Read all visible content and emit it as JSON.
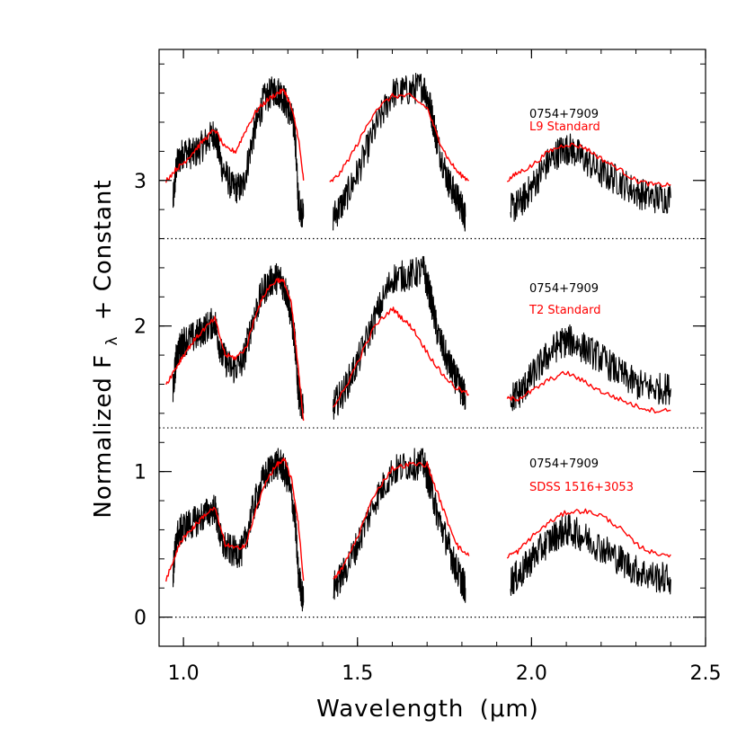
{
  "chart_data": {
    "type": "line",
    "title": "",
    "xlabel": "Wavelength",
    "xlabel_unit": "(μm)",
    "ylabel": "Normalized F",
    "ylabel_sub": "λ",
    "ylabel_suffix": "+ Constant",
    "xlim": [
      0.93,
      2.5
    ],
    "ylim": [
      -0.2,
      3.9
    ],
    "x_ticks": [
      1.0,
      1.5,
      2.0,
      2.5
    ],
    "x_tick_labels": [
      "1.0",
      "1.5",
      "2.0",
      "2.5"
    ],
    "y_ticks": [
      0,
      1,
      2,
      3
    ],
    "y_tick_labels": [
      "0",
      "1",
      "2",
      "3"
    ],
    "grid": false,
    "zero_lines": [
      0.0,
      1.3,
      2.6
    ],
    "colors": {
      "object": "#000000",
      "comparison": "#ff0000",
      "zero_line": "#000000"
    },
    "panels": [
      {
        "offset": 2.6,
        "object_label": "0754+7909",
        "comparison_label": "L9 Standard",
        "object_segments": [
          {
            "x": [
              0.97,
              0.98,
              1.0,
              1.03,
              1.06,
              1.09,
              1.11,
              1.14,
              1.17,
              1.2,
              1.23,
              1.26,
              1.28,
              1.3,
              1.32,
              1.33,
              1.345
            ],
            "y": [
              2.85,
              3.1,
              3.2,
              3.18,
              3.25,
              3.33,
              3.1,
              2.95,
              2.95,
              3.3,
              3.55,
              3.62,
              3.6,
              3.5,
              3.35,
              2.85,
              2.75
            ]
          },
          {
            "x": [
              1.43,
              1.46,
              1.5,
              1.55,
              1.6,
              1.65,
              1.69,
              1.71,
              1.73,
              1.76,
              1.78,
              1.8,
              1.81
            ],
            "y": [
              2.75,
              2.85,
              3.05,
              3.35,
              3.6,
              3.62,
              3.65,
              3.5,
              3.25,
              3.0,
              2.9,
              2.82,
              2.75
            ]
          },
          {
            "x": [
              1.94,
              1.97,
              2.0,
              2.04,
              2.08,
              2.11,
              2.15,
              2.2,
              2.25,
              2.3,
              2.35,
              2.4
            ],
            "y": [
              2.8,
              2.85,
              2.95,
              3.1,
              3.2,
              3.22,
              3.15,
              3.05,
              3.0,
              2.92,
              2.88,
              2.88
            ]
          }
        ],
        "comparison_segments": [
          {
            "x": [
              0.95,
              0.98,
              1.0,
              1.03,
              1.06,
              1.09,
              1.12,
              1.15,
              1.18,
              1.21,
              1.24,
              1.27,
              1.29,
              1.31,
              1.33,
              1.345
            ],
            "y": [
              3.0,
              3.08,
              3.12,
              3.2,
              3.28,
              3.35,
              3.22,
              3.2,
              3.35,
              3.48,
              3.55,
              3.6,
              3.62,
              3.5,
              3.3,
              3.0
            ]
          },
          {
            "x": [
              1.42,
              1.45,
              1.5,
              1.55,
              1.6,
              1.65,
              1.7,
              1.73,
              1.76,
              1.79,
              1.82
            ],
            "y": [
              2.98,
              3.05,
              3.25,
              3.48,
              3.58,
              3.58,
              3.5,
              3.3,
              3.15,
              3.05,
              3.0
            ]
          },
          {
            "x": [
              1.93,
              1.96,
              2.0,
              2.05,
              2.1,
              2.15,
              2.2,
              2.25,
              2.3,
              2.35,
              2.4
            ],
            "y": [
              3.0,
              3.05,
              3.1,
              3.2,
              3.25,
              3.23,
              3.15,
              3.08,
              3.0,
              2.97,
              2.97
            ]
          }
        ]
      },
      {
        "offset": 1.3,
        "object_label": "0754+7909",
        "comparison_label": "T2 Standard",
        "object_segments": [
          {
            "x": [
              0.97,
              0.98,
              1.0,
              1.03,
              1.06,
              1.09,
              1.11,
              1.14,
              1.17,
              1.2,
              1.23,
              1.26,
              1.28,
              1.3,
              1.32,
              1.33,
              1.345
            ],
            "y": [
              1.55,
              1.8,
              1.9,
              1.92,
              1.98,
              2.03,
              1.8,
              1.7,
              1.75,
              2.05,
              2.25,
              2.33,
              2.32,
              2.2,
              1.9,
              1.55,
              1.4
            ]
          },
          {
            "x": [
              1.43,
              1.46,
              1.5,
              1.55,
              1.6,
              1.65,
              1.69,
              1.71,
              1.73,
              1.76,
              1.78,
              1.8,
              1.81
            ],
            "y": [
              1.45,
              1.55,
              1.75,
              2.05,
              2.33,
              2.35,
              2.38,
              2.2,
              1.95,
              1.75,
              1.65,
              1.55,
              1.52
            ]
          },
          {
            "x": [
              1.94,
              1.97,
              2.0,
              2.04,
              2.08,
              2.11,
              2.15,
              2.2,
              2.25,
              2.3,
              2.35,
              2.4
            ],
            "y": [
              1.5,
              1.55,
              1.65,
              1.78,
              1.88,
              1.9,
              1.85,
              1.78,
              1.68,
              1.6,
              1.57,
              1.57
            ]
          }
        ],
        "comparison_segments": [
          {
            "x": [
              0.95,
              0.98,
              1.0,
              1.03,
              1.06,
              1.09,
              1.12,
              1.15,
              1.18,
              1.21,
              1.24,
              1.27,
              1.29,
              1.31,
              1.33,
              1.345
            ],
            "y": [
              1.6,
              1.72,
              1.8,
              1.9,
              1.98,
              2.05,
              1.8,
              1.78,
              1.85,
              2.1,
              2.25,
              2.32,
              2.3,
              2.15,
              1.7,
              1.35
            ]
          },
          {
            "x": [
              1.43,
              1.46,
              1.5,
              1.55,
              1.6,
              1.63,
              1.66,
              1.7,
              1.74,
              1.78,
              1.82
            ],
            "y": [
              1.45,
              1.55,
              1.75,
              2.0,
              2.12,
              2.05,
              1.98,
              1.82,
              1.68,
              1.58,
              1.53
            ]
          },
          {
            "x": [
              1.93,
              1.96,
              2.0,
              2.05,
              2.1,
              2.15,
              2.2,
              2.25,
              2.3,
              2.35,
              2.4
            ],
            "y": [
              1.5,
              1.5,
              1.55,
              1.63,
              1.68,
              1.62,
              1.55,
              1.5,
              1.45,
              1.42,
              1.42
            ]
          }
        ]
      },
      {
        "offset": 0.0,
        "object_label": "0754+7909",
        "comparison_label": "SDSS 1516+3053",
        "object_segments": [
          {
            "x": [
              0.97,
              0.98,
              1.0,
              1.03,
              1.06,
              1.09,
              1.11,
              1.14,
              1.17,
              1.2,
              1.23,
              1.26,
              1.28,
              1.3,
              1.32,
              1.33,
              1.345
            ],
            "y": [
              0.3,
              0.55,
              0.62,
              0.65,
              0.7,
              0.75,
              0.5,
              0.45,
              0.45,
              0.75,
              0.95,
              1.05,
              1.05,
              0.95,
              0.7,
              0.3,
              0.1
            ]
          },
          {
            "x": [
              1.43,
              1.46,
              1.5,
              1.55,
              1.6,
              1.65,
              1.69,
              1.71,
              1.73,
              1.76,
              1.78,
              1.8,
              1.81
            ],
            "y": [
              0.2,
              0.3,
              0.5,
              0.8,
              1.0,
              1.05,
              1.05,
              0.9,
              0.7,
              0.5,
              0.35,
              0.25,
              0.2
            ]
          },
          {
            "x": [
              1.94,
              1.97,
              2.0,
              2.04,
              2.08,
              2.11,
              2.15,
              2.2,
              2.25,
              2.3,
              2.35,
              2.4
            ],
            "y": [
              0.25,
              0.3,
              0.4,
              0.5,
              0.58,
              0.6,
              0.55,
              0.48,
              0.4,
              0.32,
              0.28,
              0.26
            ]
          }
        ],
        "comparison_segments": [
          {
            "x": [
              0.95,
              0.98,
              1.0,
              1.03,
              1.06,
              1.09,
              1.12,
              1.15,
              1.18,
              1.21,
              1.24,
              1.27,
              1.29,
              1.31,
              1.33,
              1.345
            ],
            "y": [
              0.25,
              0.45,
              0.55,
              0.62,
              0.7,
              0.75,
              0.5,
              0.47,
              0.5,
              0.75,
              0.95,
              1.05,
              1.08,
              0.95,
              0.65,
              0.25
            ]
          },
          {
            "x": [
              1.43,
              1.46,
              1.5,
              1.55,
              1.6,
              1.65,
              1.7,
              1.73,
              1.76,
              1.79,
              1.82
            ],
            "y": [
              0.25,
              0.35,
              0.55,
              0.85,
              1.02,
              1.05,
              1.05,
              0.85,
              0.65,
              0.48,
              0.42
            ]
          },
          {
            "x": [
              1.93,
              1.96,
              2.0,
              2.05,
              2.1,
              2.15,
              2.2,
              2.25,
              2.3,
              2.35,
              2.4
            ],
            "y": [
              0.42,
              0.45,
              0.55,
              0.65,
              0.72,
              0.73,
              0.7,
              0.62,
              0.5,
              0.44,
              0.43
            ]
          }
        ]
      }
    ]
  }
}
